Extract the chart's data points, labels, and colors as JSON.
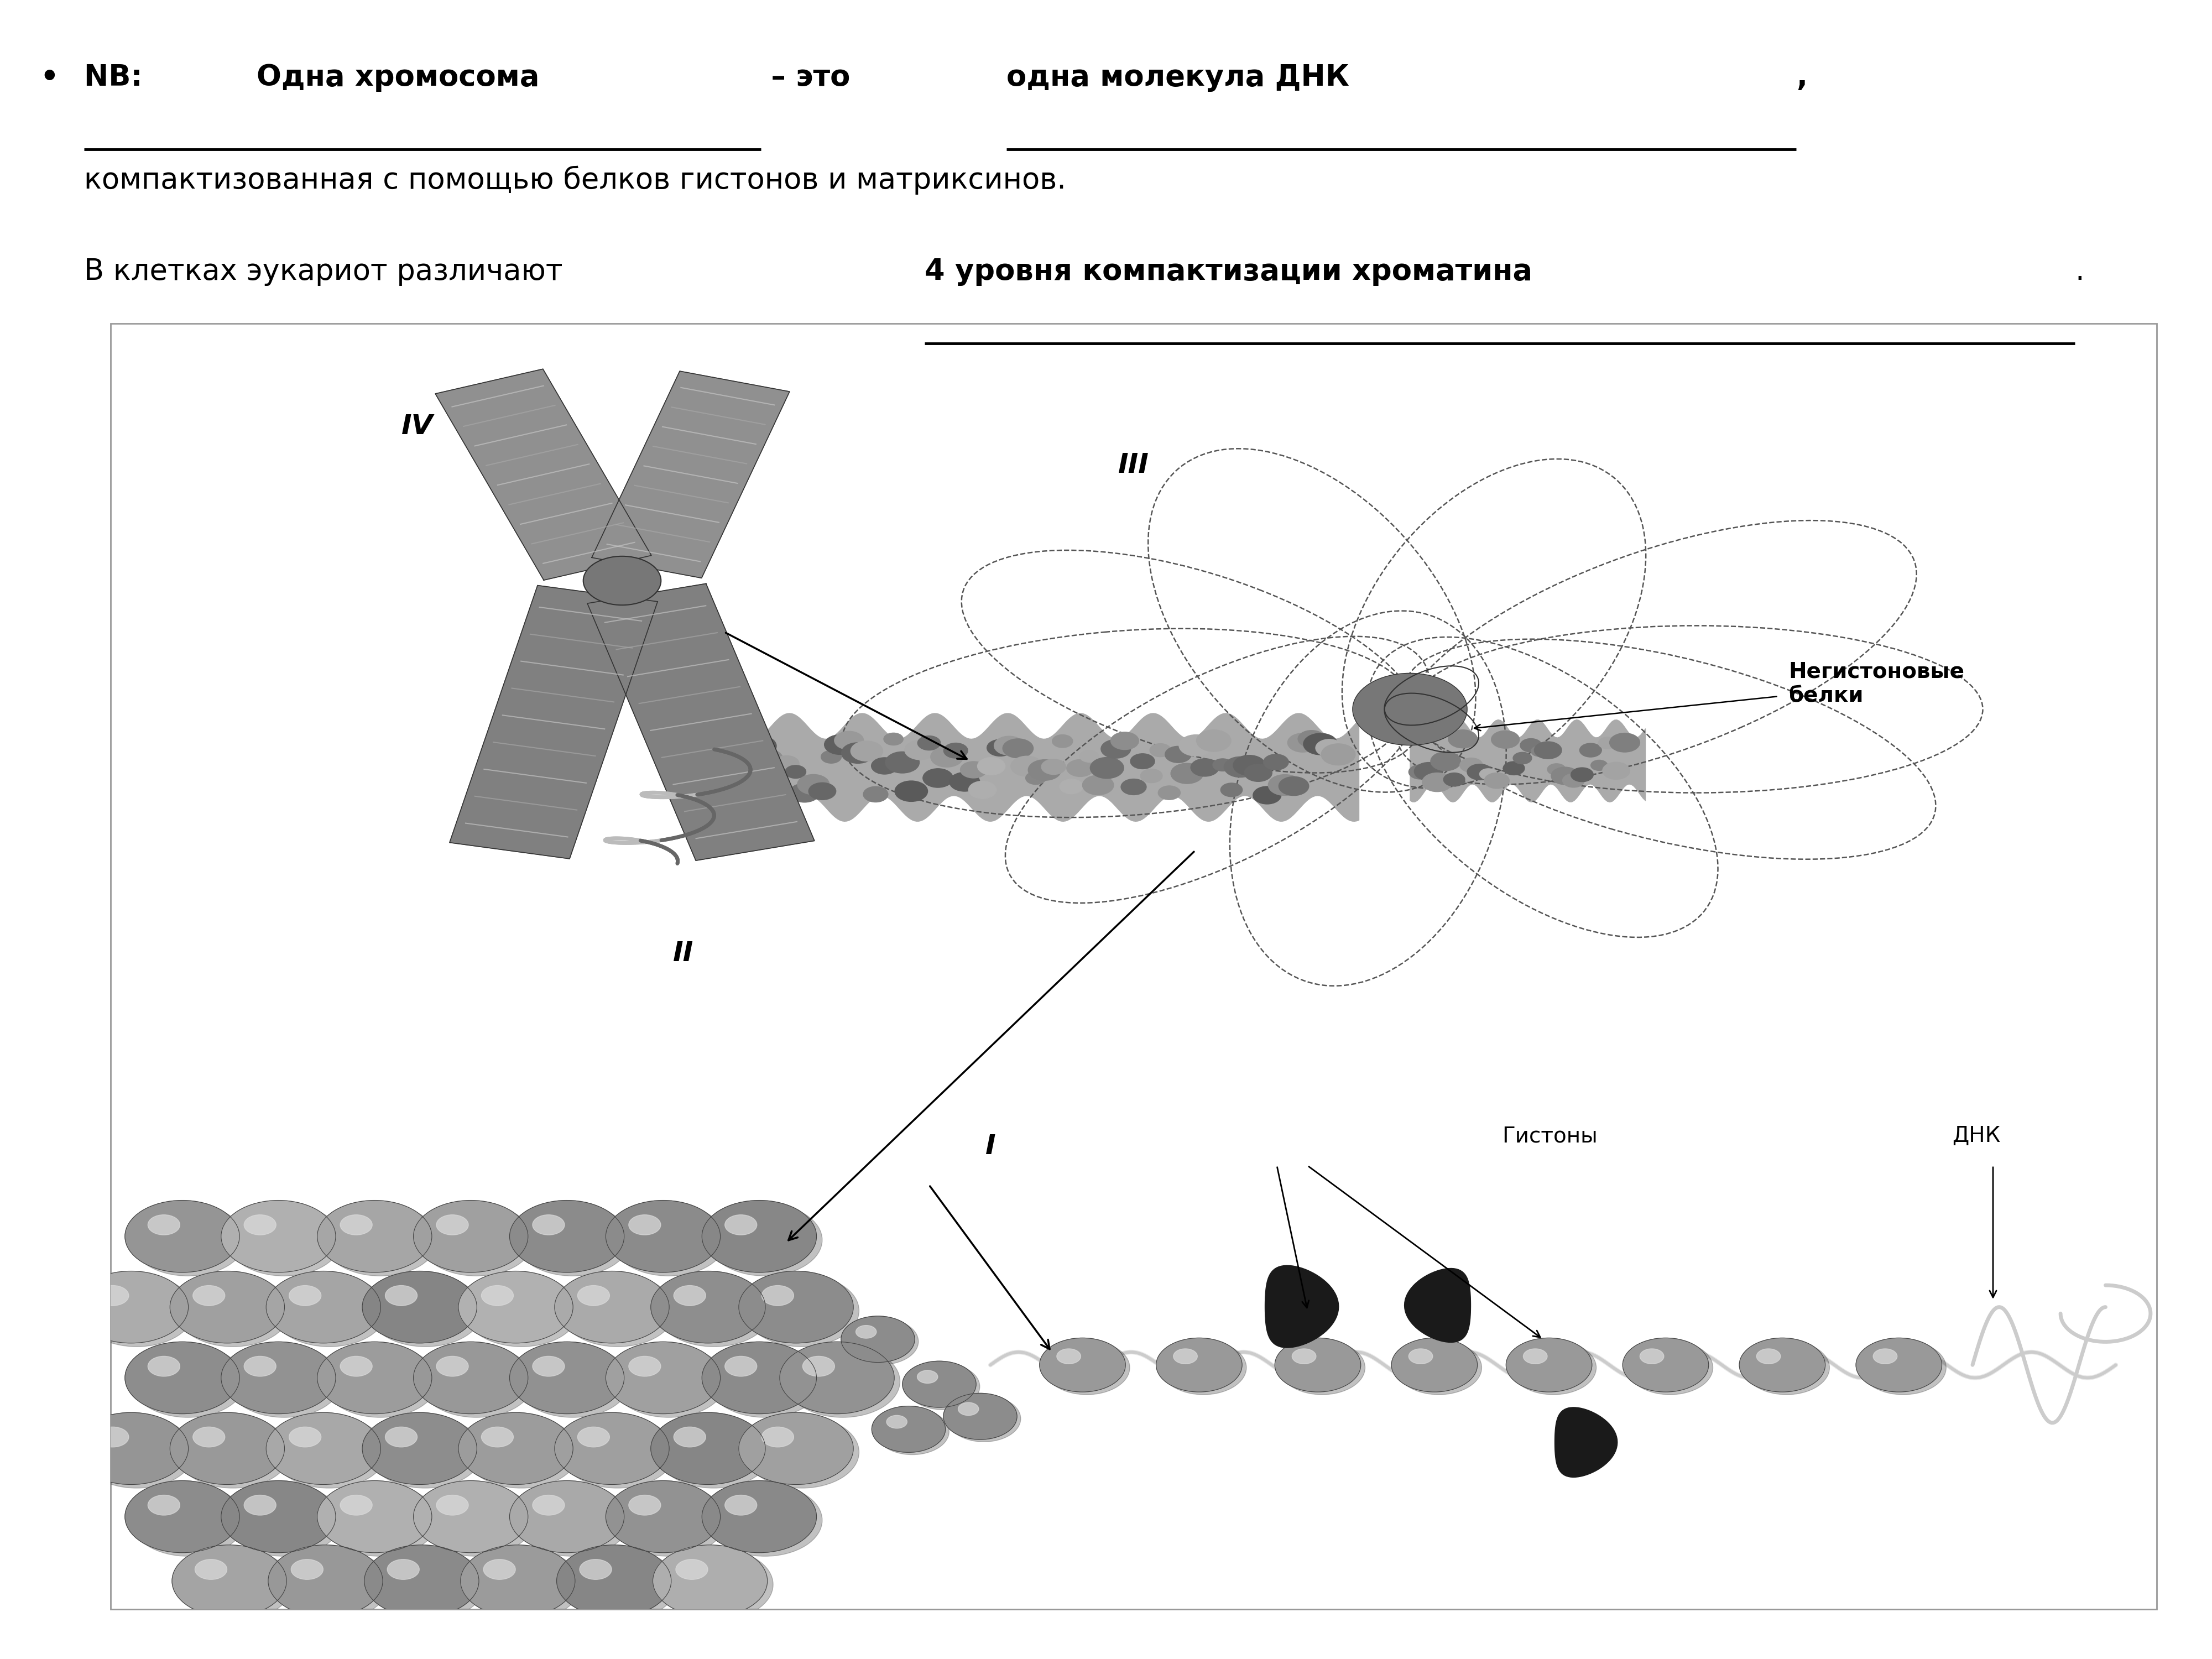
{
  "bg_color": "#ffffff",
  "title_line1_nb": "NB:   ",
  "title_line1_underline1": "Одна хромосома",
  "title_line1_middle": " – это ",
  "title_line1_underline2": "одна молекула ДНК",
  "title_line1_comma": ",",
  "title_line2": "компактизованная с помощью белков гистонов и матриксинов.",
  "title_line3_prefix": "В клетках эукариот различают ",
  "title_line3_bold_underline": "4 уровня компактизации хроматина",
  "title_line3_suffix": ".",
  "label_IV": "IV",
  "label_III": "III",
  "label_II": "II",
  "label_I": "I",
  "label_negistonovye": "Негистоновые\nбелки",
  "label_gistony": "Гистоны",
  "label_dnk": "ДНК",
  "font_size_title": 38,
  "font_size_diagram_labels": 28
}
